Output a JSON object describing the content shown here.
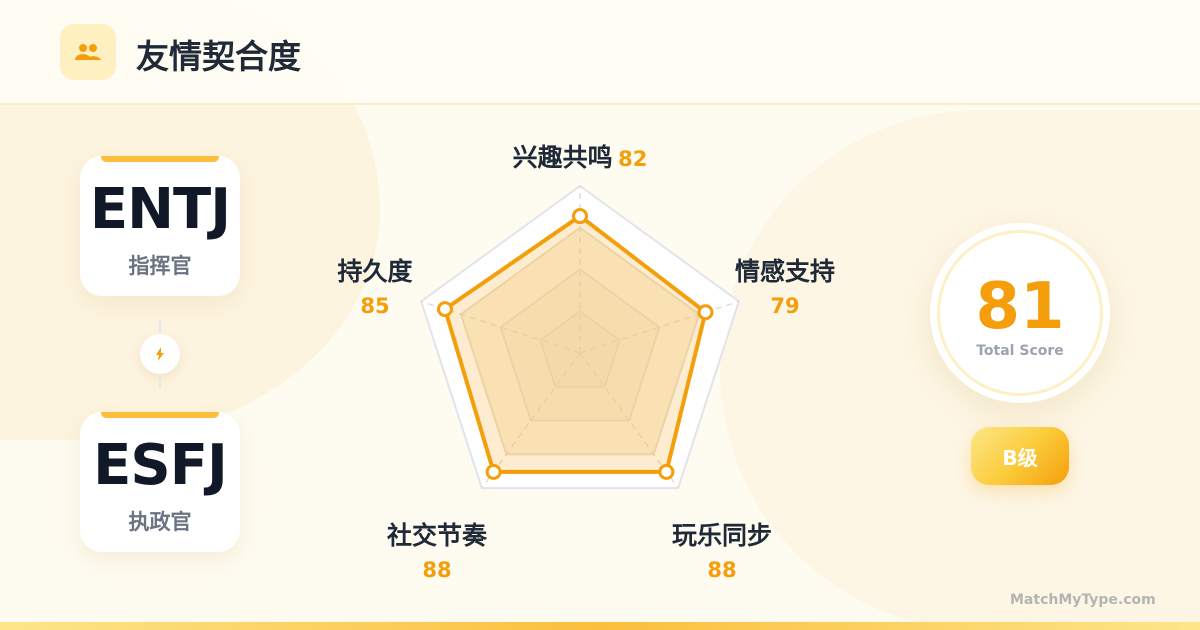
{
  "header": {
    "title": "友情契合度",
    "icon": "users-icon"
  },
  "types": [
    {
      "code": "ENTJ",
      "name": "指挥官"
    },
    {
      "code": "ESFJ",
      "name": "执政官"
    }
  ],
  "connector_icon": "lightning-icon",
  "score": {
    "value": "81",
    "caption": "Total Score",
    "grade": "B级"
  },
  "brand": "MatchMyType.com",
  "colors": {
    "accent": "#f59e0b",
    "fill": "#f8d89a",
    "text": "#1f2937"
  },
  "chart_data": {
    "type": "radar",
    "axes": [
      "兴趣共鸣",
      "情感支持",
      "玩乐同步",
      "社交节奏",
      "持久度"
    ],
    "values": [
      82,
      79,
      88,
      88,
      85
    ],
    "value_labels": [
      "82",
      "79",
      "88",
      "88",
      "85"
    ],
    "range": [
      0,
      100
    ],
    "grid_levels": [
      25,
      50,
      75,
      100
    ]
  }
}
